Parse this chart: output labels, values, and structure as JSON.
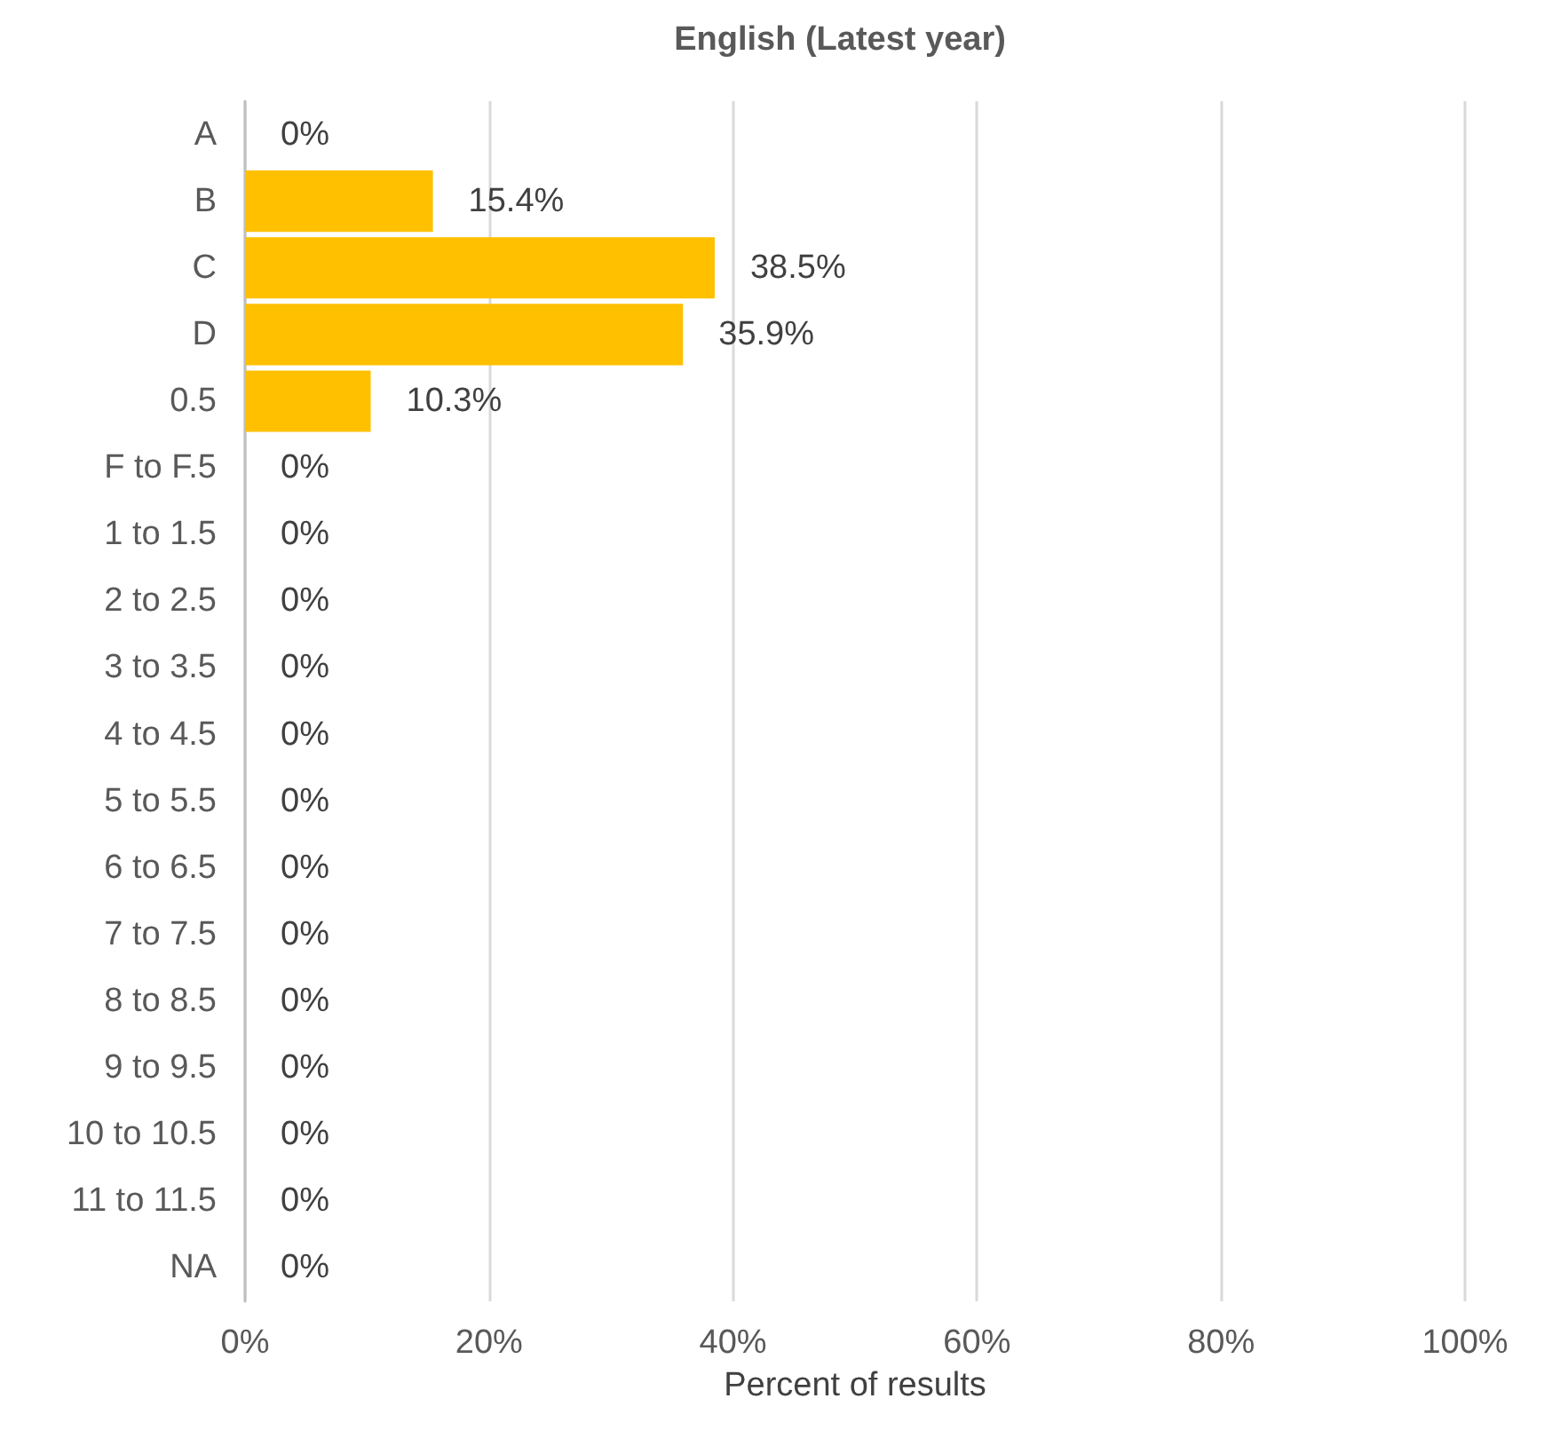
{
  "chart_data": {
    "type": "bar",
    "orientation": "horizontal",
    "title": "English (Latest year)",
    "xlabel": "Percent of results",
    "categories": [
      "A",
      "B",
      "C",
      "D",
      "0.5",
      "F to F.5",
      "1 to 1.5",
      "2 to 2.5",
      "3 to 3.5",
      "4 to 4.5",
      "5 to 5.5",
      "6 to 6.5",
      "7 to 7.5",
      "8 to 8.5",
      "9 to 9.5",
      "10 to 10.5",
      "11 to 11.5",
      "NA"
    ],
    "values": [
      0,
      15.4,
      38.5,
      35.9,
      10.3,
      0,
      0,
      0,
      0,
      0,
      0,
      0,
      0,
      0,
      0,
      0,
      0,
      0
    ],
    "value_labels": [
      "0%",
      "15.4%",
      "38.5%",
      "35.9%",
      "10.3%",
      "0%",
      "0%",
      "0%",
      "0%",
      "0%",
      "0%",
      "0%",
      "0%",
      "0%",
      "0%",
      "0%",
      "0%",
      "0%"
    ],
    "color": "#ffc000",
    "xlim": [
      0,
      100
    ],
    "xticks": [
      {
        "value": 0,
        "label": "0%"
      },
      {
        "value": 20,
        "label": "20%"
      },
      {
        "value": 40,
        "label": "40%"
      },
      {
        "value": 60,
        "label": "60%"
      },
      {
        "value": 80,
        "label": "80%"
      },
      {
        "value": 100,
        "label": "100%"
      }
    ],
    "grid": "x"
  }
}
